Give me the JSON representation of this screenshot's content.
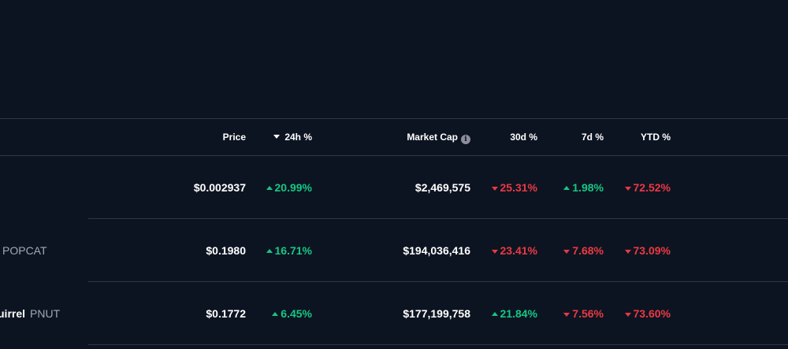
{
  "table": {
    "headers": {
      "price": "Price",
      "change_24h": "24h %",
      "market_cap": "Market Cap",
      "change_30d": "30d %",
      "change_7d": "7d %",
      "change_ytd": "YTD %"
    },
    "info_icon_glyph": "i",
    "sort_direction": "descending",
    "rows": [
      {
        "name": "",
        "symbol": "",
        "price": "$0.002937",
        "change_24h": "20.99%",
        "change_24h_dir": "up",
        "market_cap": "$2,469,575",
        "change_30d": "25.31%",
        "change_30d_dir": "down",
        "change_7d": "1.98%",
        "change_7d_dir": "up",
        "change_ytd": "72.52%",
        "change_ytd_dir": "down"
      },
      {
        "name": "",
        "symbol": "POPCAT",
        "price": "$0.1980",
        "change_24h": "16.71%",
        "change_24h_dir": "up",
        "market_cap": "$194,036,416",
        "change_30d": "23.41%",
        "change_30d_dir": "down",
        "change_7d": "7.68%",
        "change_7d_dir": "down",
        "change_ytd": "73.09%",
        "change_ytd_dir": "down"
      },
      {
        "name": "uirrel",
        "symbol": "PNUT",
        "price": "$0.1772",
        "change_24h": "6.45%",
        "change_24h_dir": "up",
        "market_cap": "$177,199,758",
        "change_30d": "21.84%",
        "change_30d_dir": "up",
        "change_7d": "7.56%",
        "change_7d_dir": "down",
        "change_ytd": "73.60%",
        "change_ytd_dir": "down"
      }
    ]
  },
  "colors": {
    "background": "#0d1421",
    "divider": "#323546",
    "positive": "#16c784",
    "negative": "#ea3943",
    "muted_text": "#a1a7bb"
  }
}
